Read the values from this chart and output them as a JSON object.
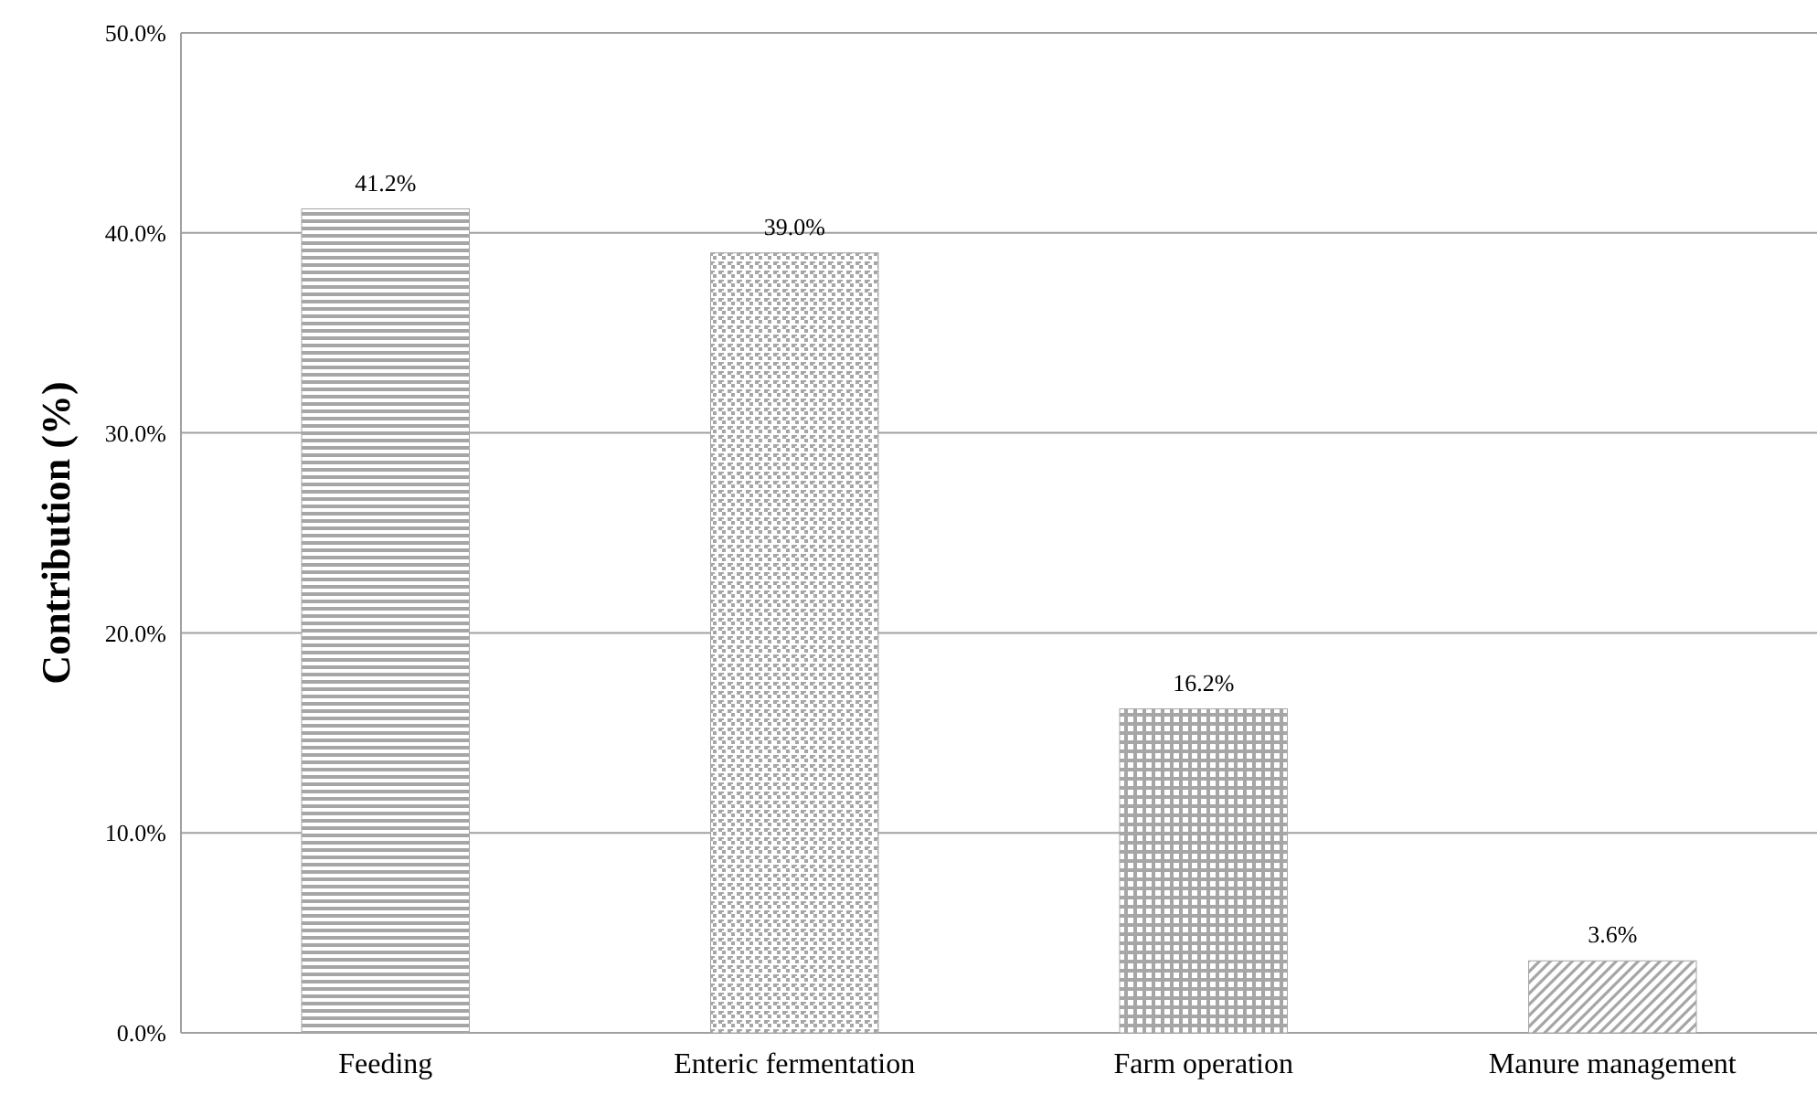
{
  "chart_data": {
    "type": "bar",
    "ylabel": "Contribution (%)",
    "categories": [
      "Feeding",
      "Enteric fermentation",
      "Farm operation",
      "Manure management"
    ],
    "values": [
      41.2,
      39.0,
      16.2,
      3.6
    ],
    "value_labels": [
      "41.2%",
      "39.0%",
      "16.2%",
      "3.6%"
    ],
    "colors": [
      "#a6a6a6",
      "#a6a6a6",
      "#a6a6a6",
      "#a6a6a6"
    ],
    "ylim": [
      0,
      50
    ],
    "yticks": [
      {
        "value": 0,
        "label": "0.0%"
      },
      {
        "value": 10,
        "label": "10.0%"
      },
      {
        "value": 20,
        "label": "20.0%"
      },
      {
        "value": 30,
        "label": "30.0%"
      },
      {
        "value": 40,
        "label": "40.0%"
      },
      {
        "value": 50,
        "label": "50.0%"
      }
    ],
    "grid": "y"
  }
}
